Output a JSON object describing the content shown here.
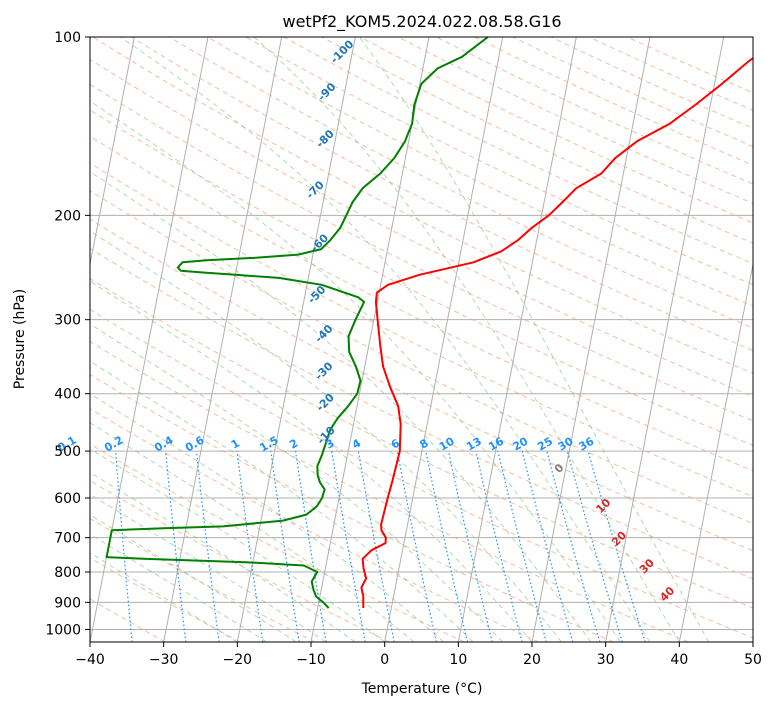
{
  "chart_data": {
    "type": "line",
    "title": "wetPf2_KOM5.2024.022.08.58.G16",
    "xlabel": "Temperature (°C)",
    "ylabel": "Pressure (hPa)",
    "xlim": [
      -40,
      50
    ],
    "ylim": [
      1050,
      100
    ],
    "y_scale": "log",
    "x_ticks": [
      -40,
      -30,
      -20,
      -10,
      0,
      10,
      20,
      30,
      40,
      50
    ],
    "x_tick_labels": [
      "−40",
      "−30",
      "−20",
      "−10",
      "0",
      "10",
      "20",
      "30",
      "40",
      "50"
    ],
    "y_ticks": [
      100,
      200,
      300,
      400,
      500,
      600,
      700,
      800,
      900,
      1000
    ],
    "y_tick_labels": [
      "100",
      "200",
      "300",
      "400",
      "500",
      "600",
      "700",
      "800",
      "900",
      "1000"
    ],
    "grid": true,
    "dry_adiabat_labels": [
      "-100",
      "-90",
      "-80",
      "-70",
      "-60",
      "-50",
      "-40",
      "-30",
      "-20",
      "-10"
    ],
    "moist_adiabat_labels": [
      "0",
      "10",
      "20",
      "30",
      "40"
    ],
    "mixing_ratio_labels": [
      "0.1",
      "0.2",
      "0.4",
      "0.6",
      "1",
      "1.5",
      "2",
      "3",
      "4",
      "6",
      "8",
      "10",
      "13",
      "16",
      "20",
      "25",
      "30",
      "36"
    ],
    "series": [
      {
        "color": "#ff0000",
        "points": [
          [
            -3.8,
            920
          ],
          [
            -4.1,
            880
          ],
          [
            -4.6,
            850
          ],
          [
            -4.2,
            820
          ],
          [
            -4.8,
            790
          ],
          [
            -5.2,
            760
          ],
          [
            -4.2,
            735
          ],
          [
            -2.5,
            715
          ],
          [
            -2.6,
            700
          ],
          [
            -3.4,
            680
          ],
          [
            -3.6,
            665
          ],
          [
            -3.4,
            600
          ],
          [
            -3.2,
            560
          ],
          [
            -3.0,
            500
          ],
          [
            -3.6,
            450
          ],
          [
            -4.4,
            420
          ],
          [
            -6.0,
            390
          ],
          [
            -7.5,
            360
          ],
          [
            -8.5,
            330
          ],
          [
            -9.5,
            300
          ],
          [
            -10.2,
            280
          ],
          [
            -10.3,
            270
          ],
          [
            -9.0,
            262
          ],
          [
            -5.0,
            252
          ],
          [
            2.0,
            240
          ],
          [
            5.5,
            230
          ],
          [
            7.5,
            220
          ],
          [
            9.0,
            210
          ],
          [
            11.0,
            200
          ],
          [
            12.5,
            190
          ],
          [
            14.0,
            180
          ],
          [
            17.0,
            170
          ],
          [
            18.5,
            160
          ],
          [
            21.0,
            150
          ],
          [
            25.0,
            140
          ],
          [
            28.0,
            130
          ],
          [
            31.0,
            120
          ],
          [
            34.0,
            110
          ],
          [
            37.5,
            101
          ],
          [
            38.5,
            100
          ]
        ]
      },
      {
        "color": "#008000",
        "points": [
          [
            -8.5,
            920
          ],
          [
            -9.4,
            900
          ],
          [
            -10.5,
            880
          ],
          [
            -11.0,
            860
          ],
          [
            -11.5,
            830
          ],
          [
            -11.0,
            800
          ],
          [
            -13.0,
            780
          ],
          [
            -21.0,
            770
          ],
          [
            -35.0,
            760
          ],
          [
            -40.0,
            755
          ],
          [
            -40.0,
            680
          ],
          [
            -33.0,
            675
          ],
          [
            -25.0,
            670
          ],
          [
            -17.0,
            655
          ],
          [
            -14.0,
            640
          ],
          [
            -12.8,
            620
          ],
          [
            -12.3,
            600
          ],
          [
            -12.2,
            580
          ],
          [
            -13.0,
            565
          ],
          [
            -13.5,
            550
          ],
          [
            -13.8,
            530
          ],
          [
            -13.5,
            510
          ],
          [
            -13.2,
            480
          ],
          [
            -13.0,
            460
          ],
          [
            -12.3,
            440
          ],
          [
            -11.2,
            420
          ],
          [
            -10.3,
            400
          ],
          [
            -10.2,
            380
          ],
          [
            -11.2,
            360
          ],
          [
            -12.5,
            340
          ],
          [
            -13.0,
            320
          ],
          [
            -12.5,
            300
          ],
          [
            -11.8,
            280
          ],
          [
            -12.7,
            275
          ],
          [
            -18.0,
            262
          ],
          [
            -24.0,
            255
          ],
          [
            -30.0,
            252
          ],
          [
            -34.0,
            250
          ],
          [
            -37.5,
            248
          ],
          [
            -38.0,
            245
          ],
          [
            -37.5,
            240
          ],
          [
            -34.0,
            238
          ],
          [
            -28.0,
            236
          ],
          [
            -22.0,
            233
          ],
          [
            -19.0,
            228
          ],
          [
            -18.0,
            220
          ],
          [
            -17.0,
            210
          ],
          [
            -16.5,
            200
          ],
          [
            -16.0,
            190
          ],
          [
            -15.0,
            180
          ],
          [
            -13.0,
            170
          ],
          [
            -11.5,
            160
          ],
          [
            -10.5,
            150
          ],
          [
            -10.0,
            140
          ],
          [
            -10.2,
            130
          ],
          [
            -9.8,
            120
          ],
          [
            -8.0,
            113
          ],
          [
            -5.0,
            108
          ],
          [
            -2.0,
            100
          ]
        ]
      }
    ]
  }
}
